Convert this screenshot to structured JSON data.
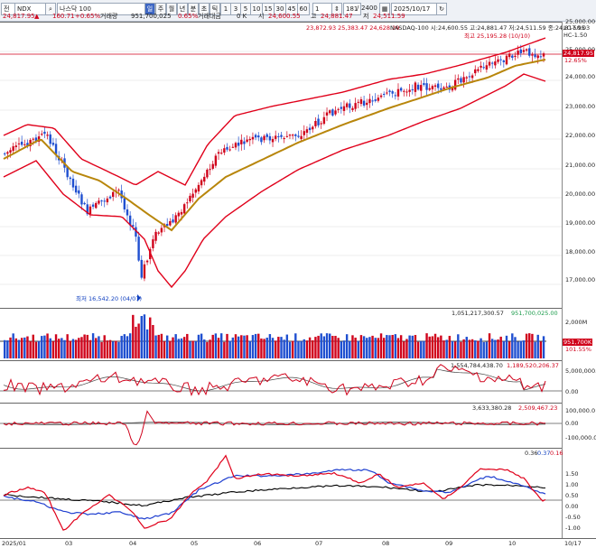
{
  "toolbar": {
    "type_label": "전",
    "symbol_code": "NDX",
    "symbol_name": "나스닥 100",
    "period_buttons": [
      "일",
      "주",
      "월",
      "년",
      "분",
      "초",
      "틱",
      "1",
      "3",
      "5",
      "10",
      "15",
      "30",
      "45",
      "60"
    ],
    "count_button": "1",
    "count_value": "181",
    "count_total": "2400",
    "date_value": "2025/10/17"
  },
  "quote": {
    "price": "24,817.95",
    "change_arrow": "▲",
    "change": "160.71",
    "change_pct": "+0.65%",
    "volume_label": "거래량",
    "volume": "951,700,025",
    "volume_pct": "0.65%",
    "amount_label": "거래대금",
    "amount": "0 K",
    "open_label": "시",
    "open": "24,600.55",
    "high_label": "고",
    "high": "24,881.47",
    "low_label": "저",
    "low": "24,511.59"
  },
  "price_panel": {
    "legend_values": "23,872.93  25,383.47  24,628.29",
    "legend_text": "NASDAQ-100  시:24,600.55  고:24,881.47  저:24,511.59  종:24,817.95",
    "lc_label": "LC-50.03",
    "hc_label": "HC-1.50",
    "high_annotation": "최고 25,195.28 (10/10)",
    "low_annotation": "최저 16,542.20 (04/07)",
    "last_tag": "24,817.95",
    "last_pct": "12.65%",
    "axis_labels": [
      "25,000.00",
      "24,000.00",
      "23,000.00",
      "22,000.00",
      "21,000.00",
      "20,000.00",
      "19,000.00",
      "18,000.00",
      "17,000.00"
    ]
  },
  "volume_panel": {
    "legend_total": "1,051,217,300.57",
    "legend_current": "951,700,025.00",
    "axis_top": "2,000M",
    "last_tag": "951,700K",
    "last_pct": "101.55%"
  },
  "ind1": {
    "legend_a": "1,554,784,438.70",
    "legend_b": "1,189,520,206.37",
    "axis_labels": [
      "5,000,000.0",
      "0.00"
    ]
  },
  "ind2": {
    "legend_a": "3,633,380.28",
    "legend_b": "2,509,467.23",
    "axis_labels": [
      "100,000.0",
      "0.00",
      "-100,000.0"
    ]
  },
  "ind3": {
    "legend_a": "0.36",
    "legend_b": "0.37",
    "legend_c": "0.16",
    "axis_labels": [
      "1.50",
      "1.00",
      "0.50",
      "0.00",
      "-0.50",
      "-1.00"
    ]
  },
  "dates": [
    "2025/01",
    "03",
    "04",
    "05",
    "06",
    "07",
    "08",
    "09",
    "10",
    "10/17"
  ],
  "colors": {
    "up": "#d0021b",
    "down": "#1f4fd0",
    "ma": "#b8860b",
    "band": "#e0001a"
  }
}
